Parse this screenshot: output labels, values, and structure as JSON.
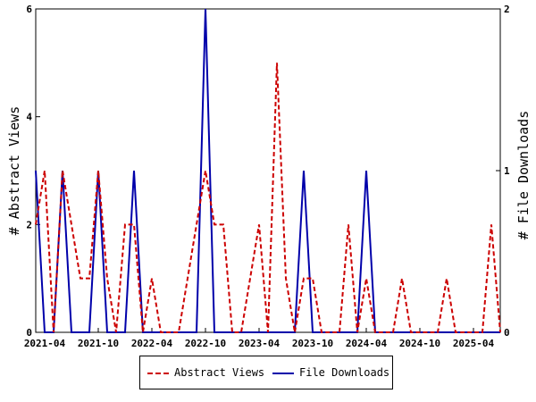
{
  "chart_data": {
    "type": "line",
    "x": [
      "2021-03",
      "2021-04",
      "2021-05",
      "2021-06",
      "2021-07",
      "2021-08",
      "2021-09",
      "2021-10",
      "2021-11",
      "2021-12",
      "2022-01",
      "2022-02",
      "2022-03",
      "2022-04",
      "2022-05",
      "2022-06",
      "2022-07",
      "2022-08",
      "2022-09",
      "2022-10",
      "2022-11",
      "2022-12",
      "2023-01",
      "2023-02",
      "2023-03",
      "2023-04",
      "2023-05",
      "2023-06",
      "2023-07",
      "2023-08",
      "2023-09",
      "2023-10",
      "2023-11",
      "2023-12",
      "2024-01",
      "2024-02",
      "2024-03",
      "2024-04",
      "2024-05",
      "2024-06",
      "2024-07",
      "2024-08",
      "2024-09",
      "2024-10",
      "2024-11",
      "2024-12",
      "2025-01",
      "2025-02",
      "2025-03",
      "2025-04",
      "2025-05",
      "2025-06",
      "2025-07"
    ],
    "xticks": [
      "2021-04",
      "2021-10",
      "2022-04",
      "2022-10",
      "2023-04",
      "2023-10",
      "2024-04",
      "2024-10",
      "2025-04"
    ],
    "ylabel": "# Abstract Views",
    "y2label": "# File Downloads",
    "ylim": [
      0,
      6
    ],
    "yticks": [
      "0",
      "2",
      "4",
      "6"
    ],
    "y2lim": [
      0,
      2
    ],
    "y2ticks": [
      "0",
      "1",
      "2"
    ],
    "legend_position": "bottom",
    "series": [
      {
        "name": "Abstract Views",
        "axis": "left",
        "color": "#cc0000",
        "style": "dashed",
        "values": [
          2,
          3,
          0,
          3,
          2,
          1,
          1,
          3,
          1,
          0,
          2,
          2,
          0,
          1,
          0,
          0,
          0,
          1,
          2,
          3,
          2,
          2,
          0,
          0,
          1,
          2,
          0,
          5,
          1,
          0,
          1,
          1,
          0,
          0,
          0,
          2,
          0,
          1,
          0,
          0,
          0,
          1,
          0,
          0,
          0,
          0,
          1,
          0,
          0,
          0,
          0,
          2,
          0
        ]
      },
      {
        "name": "File Downloads",
        "axis": "right",
        "color": "#0000aa",
        "style": "solid",
        "values": [
          1,
          0,
          0,
          1,
          0,
          0,
          0,
          1,
          0,
          0,
          0,
          1,
          0,
          0,
          0,
          0,
          0,
          0,
          0,
          2,
          0,
          0,
          0,
          0,
          0,
          0,
          0,
          0,
          0,
          0,
          1,
          0,
          0,
          0,
          0,
          0,
          0,
          1,
          0,
          0,
          0,
          0,
          0,
          0,
          0,
          0,
          0,
          0,
          0,
          0,
          0,
          0,
          0
        ]
      }
    ]
  }
}
